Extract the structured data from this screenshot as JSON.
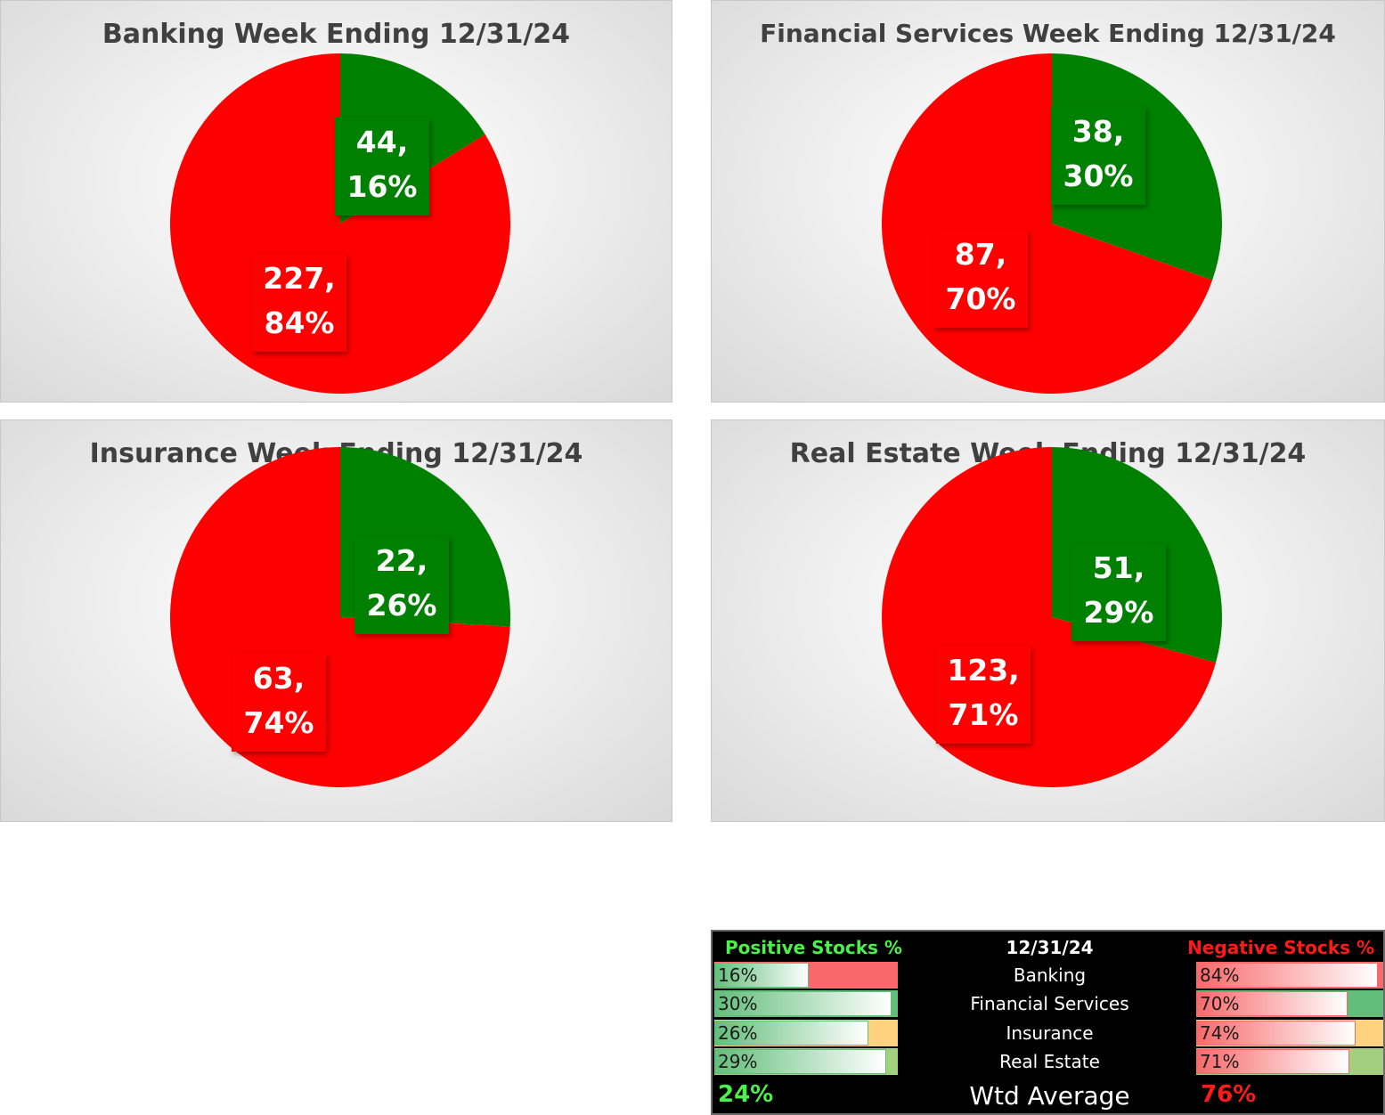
{
  "chart_data": [
    {
      "type": "pie",
      "title": "Banking Week Ending 12/31/24",
      "series": [
        {
          "name": "",
          "values": [
            44,
            227
          ]
        }
      ],
      "labels": [
        "44,\n16%",
        "227,\n84%"
      ],
      "label_lines": [
        [
          "44,",
          "16%"
        ],
        [
          "227,",
          "84%"
        ]
      ],
      "colors": [
        "#008000",
        "#ff0000"
      ]
    },
    {
      "type": "pie",
      "title": "Financial Services Week Ending 12/31/24",
      "series": [
        {
          "name": "",
          "values": [
            38,
            87
          ]
        }
      ],
      "label_lines": [
        [
          "38,",
          "30%"
        ],
        [
          "87,",
          "70%"
        ]
      ],
      "colors": [
        "#008000",
        "#ff0000"
      ]
    },
    {
      "type": "pie",
      "title": "Insurance Week Ending 12/31/24",
      "series": [
        {
          "name": "",
          "values": [
            22,
            63
          ]
        }
      ],
      "label_lines": [
        [
          "22,",
          "26%"
        ],
        [
          "63,",
          "74%"
        ]
      ],
      "colors": [
        "#008000",
        "#ff0000"
      ]
    },
    {
      "type": "pie",
      "title": "Real Estate Week Ending 12/31/24",
      "series": [
        {
          "name": "",
          "values": [
            51,
            123
          ]
        }
      ],
      "label_lines": [
        [
          "51,",
          "29%"
        ],
        [
          "123,",
          "71%"
        ]
      ],
      "colors": [
        "#008000",
        "#ff0000"
      ]
    }
  ],
  "summary": {
    "header_positive": "Positive Stocks %",
    "header_date": "12/31/24",
    "header_negative": "Negative Stocks %",
    "rows": [
      {
        "label": "Banking",
        "positive": "16%",
        "positive_value": 0.16,
        "negative": "84%",
        "negative_value": 0.84,
        "accent": "#f8696b"
      },
      {
        "label": "Financial Services",
        "positive": "30%",
        "positive_value": 0.3,
        "negative": "70%",
        "negative_value": 0.7,
        "accent": "#63be7b"
      },
      {
        "label": "Insurance",
        "positive": "26%",
        "positive_value": 0.26,
        "negative": "74%",
        "negative_value": 0.74,
        "accent": "#ffd27f"
      },
      {
        "label": "Real Estate",
        "positive": "29%",
        "positive_value": 0.29,
        "negative": "71%",
        "negative_value": 0.71,
        "accent": "#a2d07f"
      }
    ],
    "wtd_positive": "24%",
    "wtd_label": "Wtd Average",
    "wtd_negative": "76%"
  }
}
